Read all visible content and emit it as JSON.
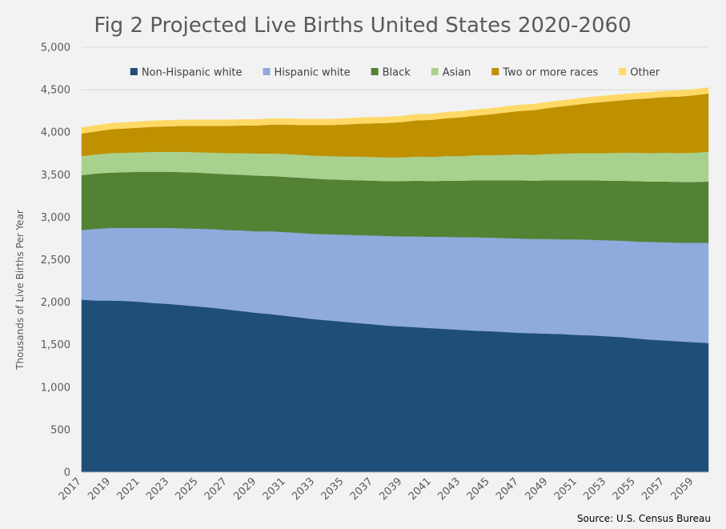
{
  "chart_data": {
    "type": "area",
    "stacked": true,
    "title": "Fig 2 Projected Live Births United States 2020-2060",
    "ylabel": "Thousands of Live Births Per Year",
    "xlabel": "",
    "source": "Source: U.S. Census Bureau",
    "ylim": [
      0,
      5000
    ],
    "y_ticks": [
      0,
      500,
      1000,
      1500,
      2000,
      2500,
      3000,
      3500,
      4000,
      4500,
      5000
    ],
    "y_tick_labels": [
      "0",
      "500",
      "1,000",
      "1,500",
      "2,000",
      "2,500",
      "3,000",
      "3,500",
      "4,000",
      "4,500",
      "5,000"
    ],
    "x_tick_labels": [
      "2017",
      "2019",
      "2021",
      "2023",
      "2025",
      "2027",
      "2029",
      "2031",
      "2033",
      "2035",
      "2037",
      "2039",
      "2041",
      "2043",
      "2045",
      "2047",
      "2049",
      "2051",
      "2053",
      "2055",
      "2057",
      "2059"
    ],
    "grid": "horizontal",
    "legend_position": "top",
    "x": [
      2017,
      2018,
      2019,
      2020,
      2021,
      2022,
      2023,
      2024,
      2025,
      2026,
      2027,
      2028,
      2029,
      2030,
      2031,
      2032,
      2033,
      2034,
      2035,
      2036,
      2037,
      2038,
      2039,
      2040,
      2041,
      2042,
      2043,
      2044,
      2045,
      2046,
      2047,
      2048,
      2049,
      2050,
      2051,
      2052,
      2053,
      2054,
      2055,
      2056,
      2057,
      2058,
      2059,
      2060
    ],
    "series": [
      {
        "name": "Non-Hispanic white",
        "color": "#1f4e79",
        "values": [
          2030,
          2020,
          2020,
          2015,
          2005,
          1990,
          1980,
          1965,
          1950,
          1935,
          1915,
          1895,
          1875,
          1860,
          1840,
          1820,
          1800,
          1785,
          1770,
          1755,
          1740,
          1725,
          1715,
          1705,
          1695,
          1685,
          1675,
          1665,
          1660,
          1650,
          1640,
          1635,
          1630,
          1625,
          1615,
          1610,
          1600,
          1590,
          1575,
          1560,
          1550,
          1540,
          1530,
          1520
        ]
      },
      {
        "name": "Hispanic white",
        "color": "#8faadc",
        "values": [
          820,
          845,
          855,
          860,
          870,
          885,
          895,
          905,
          915,
          925,
          935,
          950,
          960,
          975,
          985,
          995,
          1005,
          1015,
          1025,
          1035,
          1045,
          1055,
          1060,
          1070,
          1075,
          1085,
          1090,
          1100,
          1100,
          1105,
          1110,
          1110,
          1115,
          1115,
          1125,
          1125,
          1130,
          1135,
          1140,
          1150,
          1155,
          1160,
          1170,
          1180
        ]
      },
      {
        "name": "Black",
        "color": "#548235",
        "values": [
          645,
          650,
          650,
          655,
          660,
          660,
          660,
          660,
          660,
          655,
          655,
          655,
          655,
          650,
          650,
          650,
          650,
          645,
          645,
          645,
          645,
          645,
          650,
          655,
          655,
          660,
          665,
          670,
          675,
          680,
          685,
          685,
          690,
          695,
          695,
          700,
          700,
          705,
          710,
          710,
          715,
          715,
          715,
          720
        ]
      },
      {
        "name": "Asian",
        "color": "#a9d18e",
        "values": [
          225,
          225,
          230,
          230,
          230,
          235,
          235,
          240,
          240,
          245,
          250,
          255,
          260,
          265,
          270,
          270,
          270,
          275,
          275,
          280,
          280,
          280,
          280,
          285,
          285,
          290,
          290,
          295,
          295,
          300,
          305,
          305,
          310,
          315,
          320,
          320,
          325,
          330,
          335,
          335,
          340,
          340,
          345,
          350
        ]
      },
      {
        "name": "Two or more races",
        "color": "#bf9000",
        "values": [
          265,
          270,
          280,
          285,
          290,
          295,
          300,
          305,
          310,
          315,
          320,
          325,
          330,
          340,
          345,
          350,
          360,
          365,
          375,
          385,
          395,
          405,
          415,
          425,
          435,
          445,
          455,
          465,
          480,
          495,
          510,
          525,
          540,
          555,
          570,
          590,
          605,
          615,
          630,
          645,
          655,
          665,
          675,
          685
        ]
      },
      {
        "name": "Other",
        "color": "#ffd966",
        "values": [
          70,
          70,
          70,
          70,
          70,
          70,
          70,
          70,
          70,
          70,
          70,
          70,
          70,
          70,
          70,
          70,
          70,
          70,
          70,
          70,
          70,
          70,
          70,
          70,
          70,
          70,
          70,
          70,
          70,
          70,
          70,
          70,
          70,
          70,
          70,
          70,
          70,
          70,
          70,
          70,
          70,
          70,
          70,
          70
        ]
      }
    ]
  }
}
